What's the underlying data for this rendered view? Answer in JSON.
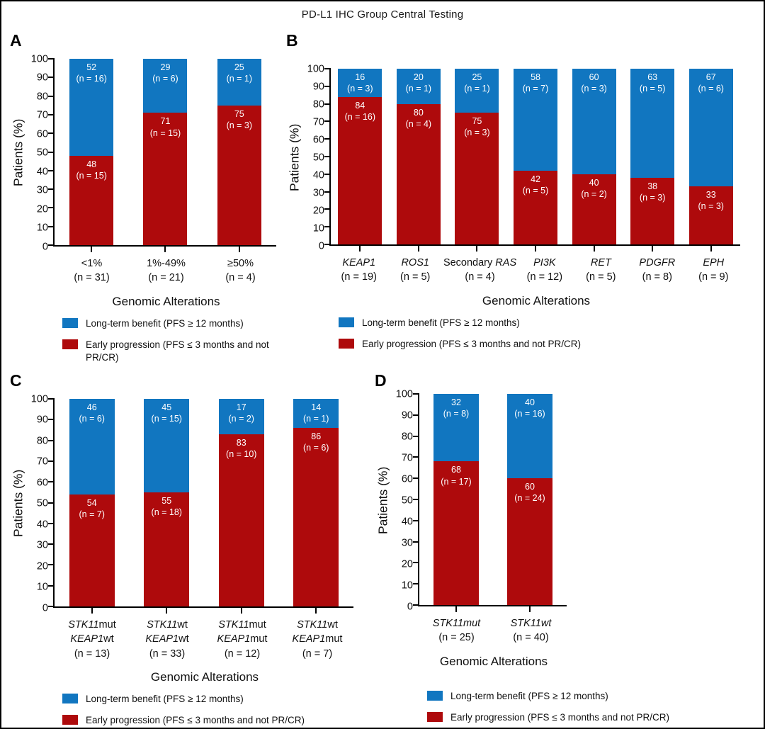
{
  "figure": {
    "title": "PD-L1 IHC Group Central Testing"
  },
  "colors": {
    "blue": "#1176c0",
    "red": "#ae0a0c"
  },
  "chart_data": [
    {
      "id": "A",
      "type": "bar",
      "stacked": true,
      "ylabel": "Patients (%)",
      "xlabel": "Genomic Alterations",
      "ylim": [
        0,
        100
      ],
      "yticks": [
        0,
        10,
        20,
        30,
        40,
        50,
        60,
        70,
        80,
        90,
        100
      ],
      "categories": [
        {
          "lines": [
            [
              {
                "t": "<1%"
              }
            ],
            [
              {
                "t": "(n = 31)"
              }
            ]
          ]
        },
        {
          "lines": [
            [
              {
                "t": "1%-49%"
              }
            ],
            [
              {
                "t": "(n = 21)"
              }
            ]
          ]
        },
        {
          "lines": [
            [
              {
                "t": "≥50%"
              }
            ],
            [
              {
                "t": "(n = 4)"
              }
            ]
          ]
        }
      ],
      "series": [
        {
          "name": "Long-term benefit (PFS ≥ 12 months)",
          "color_key": "blue",
          "position": "top",
          "values": [
            {
              "pct": 52,
              "n": 16
            },
            {
              "pct": 29,
              "n": 6
            },
            {
              "pct": 25,
              "n": 1
            }
          ]
        },
        {
          "name": "Early progression (PFS ≤ 3 months and not PR/CR)",
          "color_key": "red",
          "position": "bottom",
          "values": [
            {
              "pct": 48,
              "n": 15
            },
            {
              "pct": 71,
              "n": 15
            },
            {
              "pct": 75,
              "n": 3
            }
          ]
        }
      ],
      "legend": [
        "Long-term benefit (PFS ≥ 12 months)",
        "Early progression (PFS ≤ 3 months and not PR/CR)"
      ]
    },
    {
      "id": "B",
      "type": "bar",
      "stacked": true,
      "ylabel": "Patients (%)",
      "xlabel": "Genomic Alterations",
      "ylim": [
        0,
        100
      ],
      "yticks": [
        0,
        10,
        20,
        30,
        40,
        50,
        60,
        70,
        80,
        90,
        100
      ],
      "categories": [
        {
          "lines": [
            [
              {
                "t": "KEAP1",
                "i": true
              }
            ],
            [
              {
                "t": "(n = 19)"
              }
            ]
          ]
        },
        {
          "lines": [
            [
              {
                "t": "ROS1",
                "i": true
              }
            ],
            [
              {
                "t": "(n = 5)"
              }
            ]
          ]
        },
        {
          "lines": [
            [
              {
                "t": "Secondary "
              },
              {
                "t": "RAS",
                "i": true
              }
            ],
            [
              {
                "t": "(n = 4)"
              }
            ]
          ]
        },
        {
          "lines": [
            [
              {
                "t": "PI3K",
                "i": true
              }
            ],
            [
              {
                "t": "(n = 12)"
              }
            ]
          ]
        },
        {
          "lines": [
            [
              {
                "t": "RET",
                "i": true
              }
            ],
            [
              {
                "t": "(n = 5)"
              }
            ]
          ]
        },
        {
          "lines": [
            [
              {
                "t": "PDGFR",
                "i": true
              }
            ],
            [
              {
                "t": "(n = 8)"
              }
            ]
          ]
        },
        {
          "lines": [
            [
              {
                "t": "EPH",
                "i": true
              }
            ],
            [
              {
                "t": "(n = 9)"
              }
            ]
          ]
        }
      ],
      "series": [
        {
          "name": "Long-term benefit (PFS ≥ 12 months)",
          "color_key": "blue",
          "position": "top",
          "values": [
            {
              "pct": 16,
              "n": 3
            },
            {
              "pct": 20,
              "n": 1
            },
            {
              "pct": 25,
              "n": 1
            },
            {
              "pct": 58,
              "n": 7
            },
            {
              "pct": 60,
              "n": 3
            },
            {
              "pct": 63,
              "n": 5
            },
            {
              "pct": 67,
              "n": 6
            }
          ]
        },
        {
          "name": "Early progression (PFS ≤ 3 months and not PR/CR)",
          "color_key": "red",
          "position": "bottom",
          "values": [
            {
              "pct": 84,
              "n": 16
            },
            {
              "pct": 80,
              "n": 4
            },
            {
              "pct": 75,
              "n": 3
            },
            {
              "pct": 42,
              "n": 5
            },
            {
              "pct": 40,
              "n": 2
            },
            {
              "pct": 38,
              "n": 3
            },
            {
              "pct": 33,
              "n": 3
            }
          ]
        }
      ],
      "legend": [
        "Long-term benefit (PFS ≥ 12 months)",
        "Early progression (PFS ≤ 3 months and not PR/CR)"
      ]
    },
    {
      "id": "C",
      "type": "bar",
      "stacked": true,
      "ylabel": "Patients (%)",
      "xlabel": "Genomic Alterations",
      "ylim": [
        0,
        100
      ],
      "yticks": [
        0,
        10,
        20,
        30,
        40,
        50,
        60,
        70,
        80,
        90,
        100
      ],
      "categories": [
        {
          "lines": [
            [
              {
                "t": "STK11",
                "i": true
              },
              {
                "t": "mut"
              }
            ],
            [
              {
                "t": "KEAP1",
                "i": true
              },
              {
                "t": "wt"
              }
            ],
            [
              {
                "t": "(n = 13)"
              }
            ]
          ]
        },
        {
          "lines": [
            [
              {
                "t": "STK11",
                "i": true
              },
              {
                "t": "wt"
              }
            ],
            [
              {
                "t": "KEAP1",
                "i": true
              },
              {
                "t": "wt"
              }
            ],
            [
              {
                "t": "(n = 33)"
              }
            ]
          ]
        },
        {
          "lines": [
            [
              {
                "t": "STK11",
                "i": true
              },
              {
                "t": "mut"
              }
            ],
            [
              {
                "t": "KEAP1",
                "i": true
              },
              {
                "t": "mut"
              }
            ],
            [
              {
                "t": "(n = 12)"
              }
            ]
          ]
        },
        {
          "lines": [
            [
              {
                "t": "STK11",
                "i": true
              },
              {
                "t": "wt"
              }
            ],
            [
              {
                "t": "KEAP1",
                "i": true
              },
              {
                "t": "mut"
              }
            ],
            [
              {
                "t": "(n = 7)"
              }
            ]
          ]
        }
      ],
      "series": [
        {
          "name": "Long-term benefit (PFS ≥ 12 months)",
          "color_key": "blue",
          "position": "top",
          "values": [
            {
              "pct": 46,
              "n": 6
            },
            {
              "pct": 45,
              "n": 15
            },
            {
              "pct": 17,
              "n": 2
            },
            {
              "pct": 14,
              "n": 1
            }
          ]
        },
        {
          "name": "Early progression (PFS ≤ 3 months and not PR/CR)",
          "color_key": "red",
          "position": "bottom",
          "values": [
            {
              "pct": 54,
              "n": 7
            },
            {
              "pct": 55,
              "n": 18
            },
            {
              "pct": 83,
              "n": 10
            },
            {
              "pct": 86,
              "n": 6
            }
          ]
        }
      ],
      "legend": [
        "Long-term benefit (PFS ≥ 12 months)",
        "Early progression (PFS ≤ 3 months and not PR/CR)"
      ]
    },
    {
      "id": "D",
      "type": "bar",
      "stacked": true,
      "ylabel": "Patients (%)",
      "xlabel": "Genomic Alterations",
      "ylim": [
        0,
        100
      ],
      "yticks": [
        0,
        10,
        20,
        30,
        40,
        50,
        60,
        70,
        80,
        90,
        100
      ],
      "categories": [
        {
          "lines": [
            [
              {
                "t": "STK11mut",
                "i": true
              }
            ],
            [
              {
                "t": "(n = 25)"
              }
            ]
          ]
        },
        {
          "lines": [
            [
              {
                "t": "STK11wt",
                "i": true
              }
            ],
            [
              {
                "t": "(n = 40)"
              }
            ]
          ]
        }
      ],
      "series": [
        {
          "name": "Long-term benefit (PFS ≥ 12 months)",
          "color_key": "blue",
          "position": "top",
          "values": [
            {
              "pct": 32,
              "n": 8
            },
            {
              "pct": 40,
              "n": 16
            }
          ]
        },
        {
          "name": "Early progression (PFS ≤ 3 months and not PR/CR)",
          "color_key": "red",
          "position": "bottom",
          "values": [
            {
              "pct": 68,
              "n": 17
            },
            {
              "pct": 60,
              "n": 24
            }
          ]
        }
      ],
      "legend": [
        "Long-term benefit (PFS ≥ 12 months)",
        "Early progression (PFS ≤ 3 months and not PR/CR)"
      ]
    }
  ]
}
